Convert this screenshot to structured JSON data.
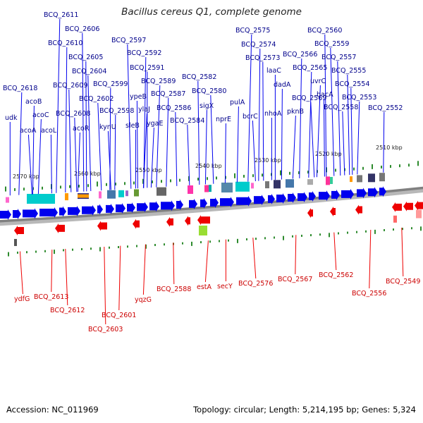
{
  "title": "Bacillus cereus Q1, complete genome",
  "footer": {
    "accession": "Accession: NC_011969",
    "summary": "Topology: circular; Length: 5,214,195 bp; Genes: 5,324"
  },
  "colors": {
    "forward": "#0000ee",
    "reverse": "#ee0000",
    "tick": "#2e8b2e",
    "backbone": "#808080"
  },
  "scale_labels": [
    "2570 kbp",
    "2560 kbp",
    "2550 kbp",
    "2540 kbp",
    "2530 kbp",
    "2520 kbp",
    "2510 kbp"
  ],
  "forward_labels": [
    "BCQ_2611",
    "BCQ_2606",
    "BCQ_2610",
    "BCQ_2597",
    "BCQ_2605",
    "BCQ_2592",
    "BCQ_2604",
    "BCQ_2591",
    "BCQ_2618",
    "BCQ_2609",
    "BCQ_2599",
    "BCQ_2589",
    "BCQ_2582",
    "acoB",
    "BCQ_2602",
    "ypeB",
    "BCQ_2587",
    "BCQ_2580",
    "udk",
    "acoC",
    "BCQ_2608",
    "BCQ_2598",
    "ylaJ",
    "BCQ_2586",
    "sigX",
    "acoA",
    "acoL",
    "acoR",
    "kynU",
    "sleB",
    "ygaE",
    "BCQ_2584",
    "nprE",
    "BCQ_2575",
    "BCQ_2560",
    "BCQ_2574",
    "BCQ_2559",
    "BCQ_2573",
    "BCQ_2566",
    "BCQ_2557",
    "laaC",
    "BCQ_2565",
    "BCQ_2555",
    "dadA",
    "uvrC",
    "BCQ_2554",
    "pulA",
    "BCQ_2569",
    "bacA",
    "BCQ_2553",
    "bcrC",
    "nhoA",
    "pknB",
    "BCQ_2558",
    "BCQ_2552"
  ],
  "reverse_labels": [
    "ydfG",
    "BCQ_2613",
    "BCQ_2612",
    "BCQ_2601",
    "BCQ_2603",
    "yqzG",
    "BCQ_2588",
    "estA",
    "secY",
    "BCQ_2576",
    "BCQ_2567",
    "BCQ_2562",
    "BCQ_2556",
    "BCQ_2549"
  ]
}
